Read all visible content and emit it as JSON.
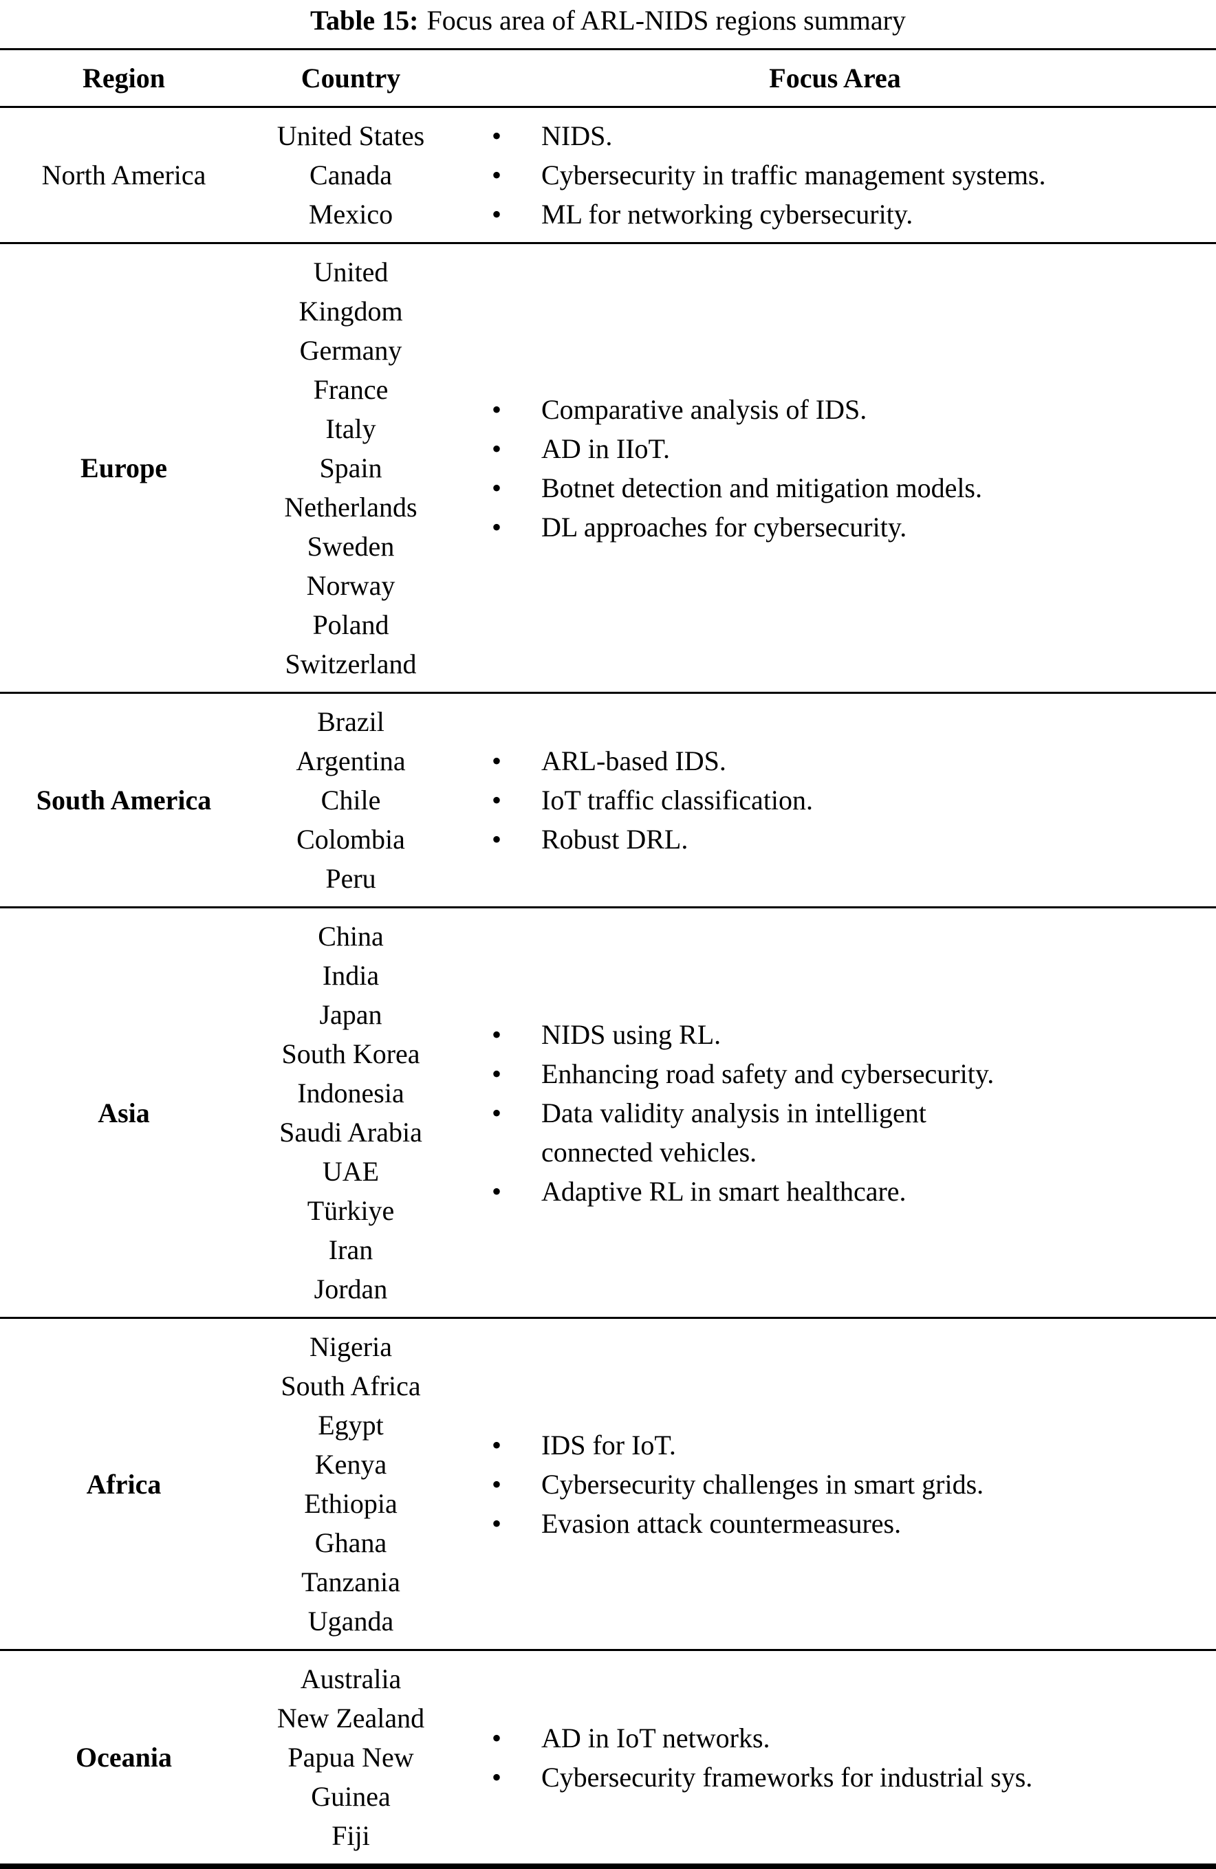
{
  "caption": {
    "label": "Table 15:",
    "text": "Focus area of ARL-NIDS regions summary"
  },
  "table": {
    "headers": [
      "Region",
      "Country",
      "Focus Area"
    ],
    "rows": [
      {
        "region": "North America",
        "bold": false,
        "countries": [
          "United States",
          "Canada",
          "Mexico"
        ],
        "focus_areas": [
          "NIDS.",
          "Cybersecurity in traffic management systems.",
          "ML for networking cybersecurity."
        ]
      },
      {
        "region": "Europe",
        "bold": true,
        "countries": [
          "United\nKingdom",
          "Germany",
          "France",
          "Italy",
          "Spain",
          "Netherlands",
          "Sweden",
          "Norway",
          "Poland",
          "Switzerland"
        ],
        "focus_areas": [
          "Comparative analysis of IDS.",
          "AD in IIoT.",
          "Botnet detection and mitigation models.",
          "DL approaches for cybersecurity."
        ]
      },
      {
        "region": "South America",
        "bold": true,
        "countries": [
          "Brazil",
          "Argentina",
          "Chile",
          "Colombia",
          "Peru"
        ],
        "focus_areas": [
          "ARL-based IDS.",
          "IoT traffic classification.",
          "Robust DRL."
        ]
      },
      {
        "region": "Asia",
        "bold": true,
        "countries": [
          "China",
          "India",
          "Japan",
          "South Korea",
          "Indonesia",
          "Saudi Arabia",
          "UAE",
          "Türkiye",
          "Iran",
          "Jordan"
        ],
        "focus_areas": [
          "NIDS using RL.",
          "Enhancing road safety and cybersecurity.",
          "Data validity analysis in intelligent\nconnected vehicles.",
          "Adaptive RL in smart healthcare."
        ]
      },
      {
        "region": "Africa",
        "bold": true,
        "countries": [
          "Nigeria",
          "South Africa",
          "Egypt",
          "Kenya",
          "Ethiopia",
          "Ghana",
          "Tanzania",
          "Uganda"
        ],
        "focus_areas": [
          "IDS for IoT.",
          "Cybersecurity challenges in smart grids.",
          "Evasion attack countermeasures."
        ]
      },
      {
        "region": "Oceania",
        "bold": true,
        "countries": [
          "Australia",
          "New Zealand",
          "Papua New\nGuinea",
          "Fiji"
        ],
        "focus_areas": [
          "AD in IoT networks.",
          "Cybersecurity frameworks for industrial sys."
        ]
      }
    ]
  }
}
